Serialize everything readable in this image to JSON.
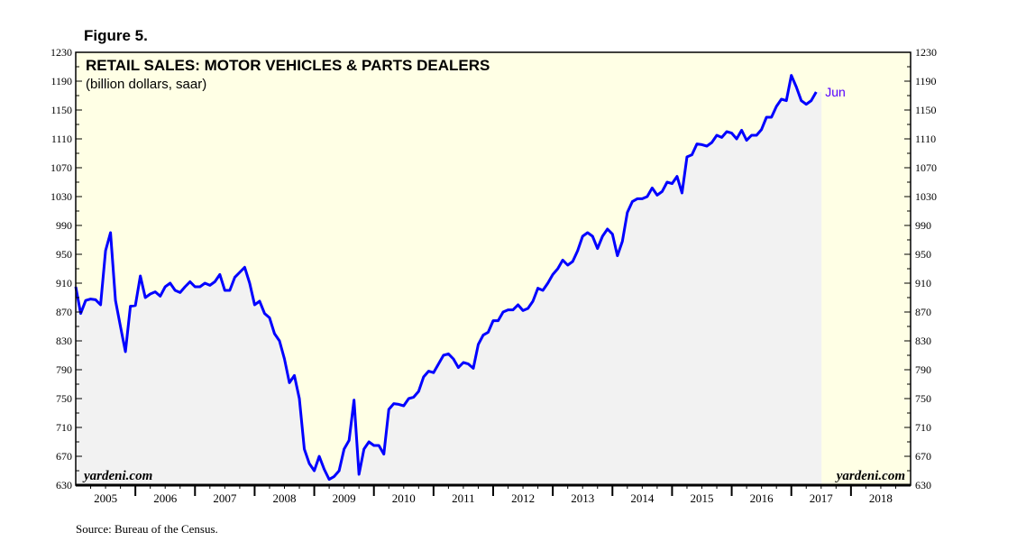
{
  "figure_label": "Figure 5.",
  "source": "Source: Bureau of the Census.",
  "watermark": "yardeni.com",
  "colors": {
    "line": "#0000FF",
    "background": "#FFFFE5",
    "fill": "#F2F2F2",
    "last_label": "#5500FF"
  },
  "chart_data": {
    "type": "area",
    "title": "RETAIL SALES: MOTOR VEHICLES & PARTS DEALERS",
    "subtitle": "(billion dollars, saar)",
    "xlabel": "",
    "ylabel": "",
    "ylim": [
      630,
      1230
    ],
    "yticks": [
      630,
      670,
      710,
      750,
      790,
      830,
      870,
      910,
      950,
      990,
      1030,
      1070,
      1110,
      1150,
      1190,
      1230
    ],
    "xrange": [
      "2005-01",
      "2018-12"
    ],
    "xticks": [
      "2005",
      "2006",
      "2007",
      "2008",
      "2009",
      "2010",
      "2011",
      "2012",
      "2013",
      "2014",
      "2015",
      "2016",
      "2017",
      "2018"
    ],
    "grid": false,
    "last_point_label": "Jun",
    "series": [
      {
        "name": "Motor Vehicles & Parts Dealers",
        "start": "2005-01",
        "frequency": "monthly",
        "values": [
          905,
          868,
          886,
          888,
          887,
          880,
          955,
          980,
          886,
          850,
          815,
          878,
          879,
          920,
          890,
          895,
          898,
          892,
          905,
          910,
          900,
          897,
          905,
          912,
          905,
          905,
          910,
          907,
          912,
          922,
          900,
          900,
          918,
          925,
          932,
          910,
          880,
          885,
          868,
          862,
          840,
          830,
          805,
          772,
          782,
          750,
          680,
          660,
          650,
          670,
          652,
          638,
          642,
          650,
          680,
          692,
          748,
          645,
          680,
          690,
          685,
          685,
          673,
          735,
          743,
          742,
          740,
          750,
          752,
          760,
          780,
          788,
          786,
          798,
          810,
          812,
          805,
          793,
          800,
          798,
          792,
          825,
          838,
          842,
          858,
          858,
          870,
          873,
          873,
          880,
          872,
          875,
          885,
          903,
          900,
          910,
          922,
          930,
          942,
          935,
          940,
          955,
          975,
          980,
          975,
          958,
          975,
          985,
          978,
          948,
          968,
          1008,
          1023,
          1027,
          1027,
          1030,
          1042,
          1032,
          1037,
          1050,
          1048,
          1058,
          1035,
          1085,
          1088,
          1103,
          1102,
          1100,
          1105,
          1115,
          1112,
          1120,
          1118,
          1110,
          1122,
          1108,
          1115,
          1115,
          1123,
          1140,
          1140,
          1155,
          1165,
          1163,
          1198,
          1182,
          1163,
          1158,
          1163,
          1175
        ]
      }
    ]
  }
}
